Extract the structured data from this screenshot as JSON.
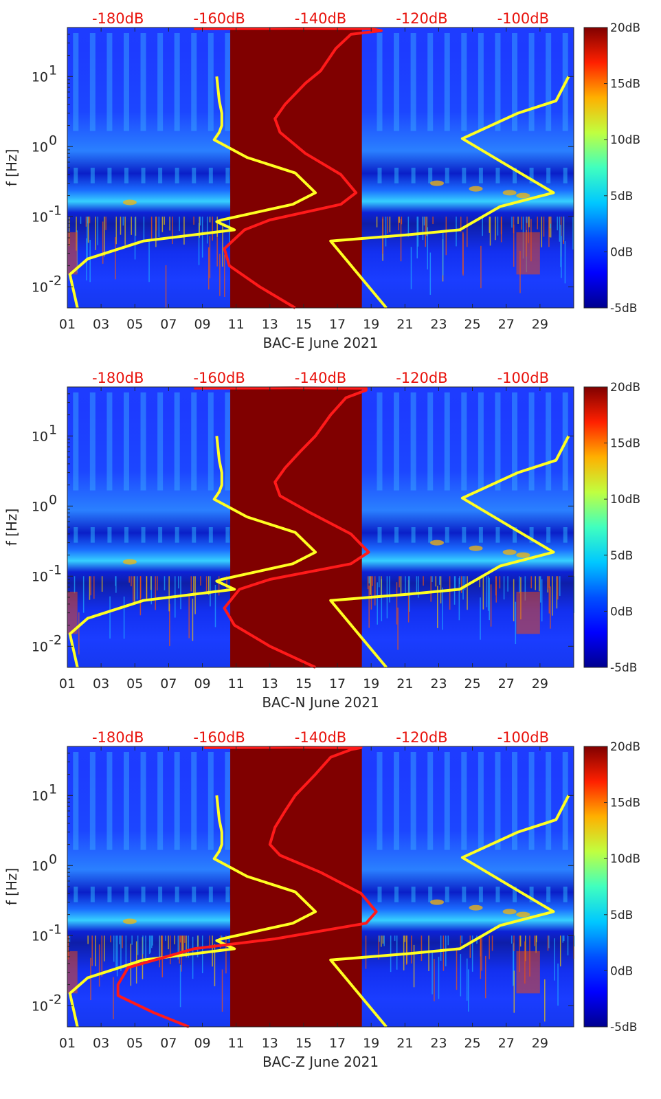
{
  "colors": {
    "colormap": [
      "#00008f",
      "#0000ff",
      "#0080ff",
      "#00ffff",
      "#80ff80",
      "#ffff00",
      "#ff8000",
      "#ff0000",
      "#800000"
    ],
    "paper_line": "#ffff22",
    "model_line": "#ff1a1a",
    "blank_fill": "#800000",
    "top_axis_text": "#e8120c"
  },
  "chart_data": [
    {
      "type": "heatmap",
      "title": "",
      "xlabel": "BAC-E June 2021",
      "ylabel": "f [Hz]",
      "x_ticks": [
        "01",
        "03",
        "05",
        "07",
        "09",
        "11",
        "13",
        "15",
        "17",
        "19",
        "21",
        "23",
        "25",
        "27",
        "29"
      ],
      "x_tick_values": [
        1,
        3,
        5,
        7,
        9,
        11,
        13,
        15,
        17,
        19,
        21,
        23,
        25,
        27,
        29
      ],
      "xlim": [
        1,
        31
      ],
      "y_ticks": [
        "10-2",
        "10-1",
        "100",
        "101"
      ],
      "y_tick_values": [
        0.01,
        0.1,
        1,
        10
      ],
      "ylim": [
        0.005,
        50
      ],
      "y_scale": "log",
      "top_axis_ticks": [
        "-180dB",
        "-160dB",
        "-140dB",
        "-120dB",
        "-100dB"
      ],
      "top_axis_values_db": [
        -180,
        -160,
        -140,
        -120,
        -100
      ],
      "top_axis_range_db": [
        -190,
        -90
      ],
      "colorbar_ticks": [
        "20dB",
        "15dB",
        "10dB",
        "5dB",
        "0dB",
        "-5dB"
      ],
      "colorbar_values_db": [
        20,
        15,
        10,
        5,
        0,
        -5
      ],
      "colorbar_range_db": [
        -5,
        20
      ],
      "data_gap_days": [
        10.65,
        18.45
      ],
      "series": [
        {
          "name": "yellow spectrum",
          "points_db_hz": [
            [
              -160.5,
              10
            ],
            [
              -160,
              4.5
            ],
            [
              -159.5,
              3
            ],
            [
              -159.5,
              2
            ],
            [
              -160,
              1.6
            ],
            [
              -161,
              1.25
            ],
            [
              -154.5,
              0.7
            ],
            [
              -145,
              0.42
            ],
            [
              -141,
              0.22
            ],
            [
              -145.5,
              0.15
            ],
            [
              -159.5,
              0.09
            ],
            [
              -160.5,
              0.085
            ],
            [
              -157,
              0.065
            ],
            [
              -175,
              0.045
            ],
            [
              -186,
              0.025
            ],
            [
              -189.5,
              0.015
            ],
            [
              -188,
              0.005
            ]
          ]
        },
        {
          "name": "yellow spectrum (right)",
          "points_db_hz": [
            [
              -91,
              10
            ],
            [
              -93.5,
              4.5
            ],
            [
              -101,
              3
            ],
            [
              -112,
              1.3
            ],
            [
              -94,
              0.22
            ],
            [
              -104.5,
              0.14
            ],
            [
              -112.5,
              0.065
            ],
            [
              -123,
              0.055
            ],
            [
              -138,
              0.045
            ],
            [
              -127,
              0.005
            ]
          ]
        },
        {
          "name": "red spectrum",
          "points_db_hz": [
            [
              -165,
              48
            ],
            [
              -145,
              48.5
            ],
            [
              -130,
              48
            ],
            [
              -128,
              45
            ],
            [
              -134,
              40
            ],
            [
              -137,
              25
            ],
            [
              -140,
              12
            ],
            [
              -143,
              8
            ],
            [
              -147,
              4
            ],
            [
              -149,
              2.5
            ],
            [
              -148,
              1.6
            ],
            [
              -143,
              0.8
            ],
            [
              -136,
              0.4
            ],
            [
              -133,
              0.22
            ],
            [
              -136,
              0.15
            ],
            [
              -150,
              0.09
            ],
            [
              -155,
              0.065
            ],
            [
              -159,
              0.035
            ],
            [
              -158,
              0.02
            ],
            [
              -152,
              0.01
            ],
            [
              -145,
              0.005
            ]
          ]
        }
      ]
    },
    {
      "type": "heatmap",
      "title": "",
      "xlabel": "BAC-N June 2021",
      "ylabel": "f [Hz]",
      "x_ticks": [
        "01",
        "03",
        "05",
        "07",
        "09",
        "11",
        "13",
        "15",
        "17",
        "19",
        "21",
        "23",
        "25",
        "27",
        "29"
      ],
      "x_tick_values": [
        1,
        3,
        5,
        7,
        9,
        11,
        13,
        15,
        17,
        19,
        21,
        23,
        25,
        27,
        29
      ],
      "xlim": [
        1,
        31
      ],
      "y_ticks": [
        "10-2",
        "10-1",
        "100",
        "101"
      ],
      "y_tick_values": [
        0.01,
        0.1,
        1,
        10
      ],
      "ylim": [
        0.005,
        50
      ],
      "y_scale": "log",
      "top_axis_ticks": [
        "-180dB",
        "-160dB",
        "-140dB",
        "-120dB",
        "-100dB"
      ],
      "top_axis_values_db": [
        -180,
        -160,
        -140,
        -120,
        -100
      ],
      "top_axis_range_db": [
        -190,
        -90
      ],
      "colorbar_ticks": [
        "20dB",
        "15dB",
        "10dB",
        "5dB",
        "0dB",
        "-5dB"
      ],
      "colorbar_values_db": [
        20,
        15,
        10,
        5,
        0,
        -5
      ],
      "colorbar_range_db": [
        -5,
        20
      ],
      "data_gap_days": [
        10.65,
        18.45
      ],
      "series": [
        {
          "name": "yellow spectrum",
          "points_db_hz": [
            [
              -160.5,
              10
            ],
            [
              -160,
              4.5
            ],
            [
              -159.5,
              3
            ],
            [
              -159.5,
              2
            ],
            [
              -160,
              1.6
            ],
            [
              -161,
              1.25
            ],
            [
              -154.5,
              0.7
            ],
            [
              -145,
              0.42
            ],
            [
              -141,
              0.22
            ],
            [
              -145.5,
              0.15
            ],
            [
              -159.5,
              0.09
            ],
            [
              -160.5,
              0.085
            ],
            [
              -157,
              0.065
            ],
            [
              -175,
              0.045
            ],
            [
              -186,
              0.025
            ],
            [
              -189.5,
              0.015
            ],
            [
              -188,
              0.005
            ]
          ]
        },
        {
          "name": "yellow spectrum (right)",
          "points_db_hz": [
            [
              -91,
              10
            ],
            [
              -93.5,
              4.5
            ],
            [
              -101,
              3
            ],
            [
              -112,
              1.3
            ],
            [
              -94,
              0.22
            ],
            [
              -104.5,
              0.14
            ],
            [
              -112.5,
              0.065
            ],
            [
              -123,
              0.055
            ],
            [
              -138,
              0.045
            ],
            [
              -127,
              0.005
            ]
          ]
        },
        {
          "name": "red spectrum",
          "points_db_hz": [
            [
              -165,
              48
            ],
            [
              -145,
              48.5
            ],
            [
              -131,
              48
            ],
            [
              -131,
              45
            ],
            [
              -135,
              35
            ],
            [
              -138,
              20
            ],
            [
              -141,
              10
            ],
            [
              -144,
              6
            ],
            [
              -147,
              3.5
            ],
            [
              -149,
              2.2
            ],
            [
              -148,
              1.4
            ],
            [
              -142,
              0.8
            ],
            [
              -134,
              0.4
            ],
            [
              -130.5,
              0.22
            ],
            [
              -134,
              0.15
            ],
            [
              -150,
              0.09
            ],
            [
              -156,
              0.065
            ],
            [
              -159,
              0.035
            ],
            [
              -157,
              0.02
            ],
            [
              -150,
              0.01
            ],
            [
              -141,
              0.005
            ]
          ]
        }
      ]
    },
    {
      "type": "heatmap",
      "title": "",
      "xlabel": "BAC-Z June 2021",
      "ylabel": "f [Hz]",
      "x_ticks": [
        "01",
        "03",
        "05",
        "07",
        "09",
        "11",
        "13",
        "15",
        "17",
        "19",
        "21",
        "23",
        "25",
        "27",
        "29"
      ],
      "x_tick_values": [
        1,
        3,
        5,
        7,
        9,
        11,
        13,
        15,
        17,
        19,
        21,
        23,
        25,
        27,
        29
      ],
      "xlim": [
        1,
        31
      ],
      "y_ticks": [
        "10-2",
        "10-1",
        "100",
        "101"
      ],
      "y_tick_values": [
        0.01,
        0.1,
        1,
        10
      ],
      "ylim": [
        0.005,
        50
      ],
      "y_scale": "log",
      "top_axis_ticks": [
        "-180dB",
        "-160dB",
        "-140dB",
        "-120dB",
        "-100dB"
      ],
      "top_axis_values_db": [
        -180,
        -160,
        -140,
        -120,
        -100
      ],
      "top_axis_range_db": [
        -190,
        -90
      ],
      "colorbar_ticks": [
        "20dB",
        "15dB",
        "10dB",
        "5dB",
        "0dB",
        "-5dB"
      ],
      "colorbar_values_db": [
        20,
        15,
        10,
        5,
        0,
        -5
      ],
      "colorbar_range_db": [
        -5,
        20
      ],
      "data_gap_days": [
        10.65,
        18.45
      ],
      "series": [
        {
          "name": "yellow spectrum",
          "points_db_hz": [
            [
              -160.5,
              10
            ],
            [
              -160,
              4.5
            ],
            [
              -159.5,
              3
            ],
            [
              -159.5,
              2
            ],
            [
              -160,
              1.6
            ],
            [
              -161,
              1.25
            ],
            [
              -154.5,
              0.7
            ],
            [
              -145,
              0.42
            ],
            [
              -141,
              0.22
            ],
            [
              -145.5,
              0.15
            ],
            [
              -159.5,
              0.09
            ],
            [
              -160.5,
              0.085
            ],
            [
              -157,
              0.065
            ],
            [
              -175,
              0.045
            ],
            [
              -186,
              0.025
            ],
            [
              -189.5,
              0.015
            ],
            [
              -188,
              0.005
            ]
          ]
        },
        {
          "name": "yellow spectrum (right)",
          "points_db_hz": [
            [
              -91,
              10
            ],
            [
              -93.5,
              4.5
            ],
            [
              -101,
              3
            ],
            [
              -112,
              1.3
            ],
            [
              -94,
              0.22
            ],
            [
              -104.5,
              0.14
            ],
            [
              -112.5,
              0.065
            ],
            [
              -123,
              0.055
            ],
            [
              -138,
              0.045
            ],
            [
              -127,
              0.005
            ]
          ]
        },
        {
          "name": "red spectrum",
          "points_db_hz": [
            [
              -163,
              48
            ],
            [
              -145,
              48.5
            ],
            [
              -132,
              48
            ],
            [
              -134,
              45
            ],
            [
              -138,
              35
            ],
            [
              -141,
              20
            ],
            [
              -145,
              10
            ],
            [
              -147,
              6
            ],
            [
              -149,
              3.5
            ],
            [
              -150,
              2
            ],
            [
              -148,
              1.4
            ],
            [
              -140,
              0.8
            ],
            [
              -132,
              0.4
            ],
            [
              -129,
              0.22
            ],
            [
              -131,
              0.15
            ],
            [
              -149,
              0.09
            ],
            [
              -165,
              0.065
            ],
            [
              -178,
              0.035
            ],
            [
              -180,
              0.02
            ],
            [
              -180,
              0.014
            ],
            [
              -173,
              0.008
            ],
            [
              -166,
              0.005
            ]
          ]
        }
      ]
    }
  ]
}
